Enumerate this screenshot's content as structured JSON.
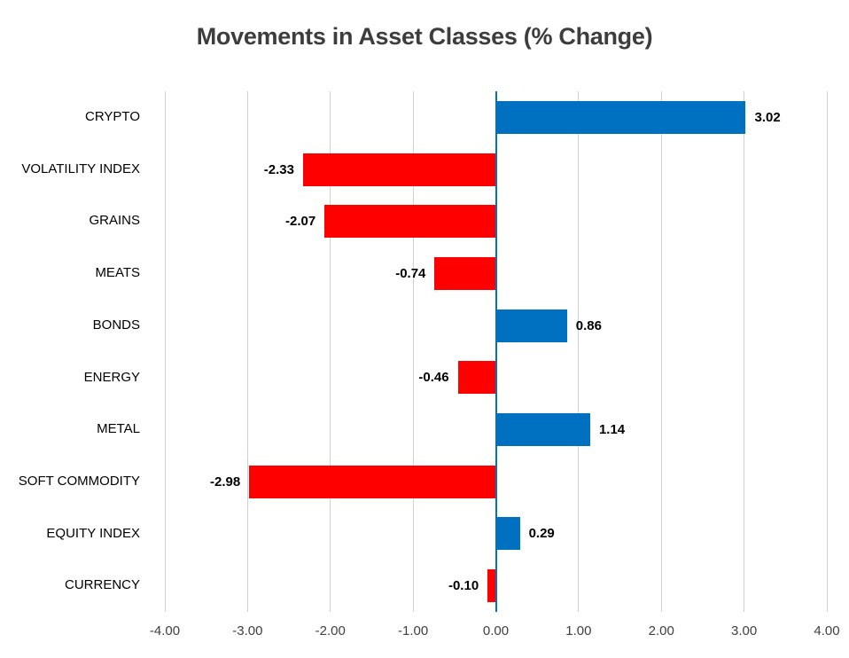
{
  "title": "Movements in Asset Classes (% Change)",
  "chart_data": {
    "type": "bar",
    "orientation": "horizontal",
    "title": "Movements in Asset Classes (% Change)",
    "categories": [
      "CRYPTO",
      "VOLATILITY INDEX",
      "GRAINS",
      "MEATS",
      "BONDS",
      "ENERGY",
      "METAL",
      "SOFT COMMODITY",
      "EQUITY INDEX",
      "CURRENCY"
    ],
    "values": [
      3.02,
      -2.33,
      -2.07,
      -0.74,
      0.86,
      -0.46,
      1.14,
      -2.98,
      0.29,
      -0.1
    ],
    "value_labels": [
      "3.02",
      "-2.33",
      "-2.07",
      "-0.74",
      "0.86",
      "-0.46",
      "1.14",
      "-2.98",
      "0.29",
      "-0.10"
    ],
    "xlabel": "",
    "ylabel": "",
    "xlim": [
      -4,
      4
    ],
    "x_ticks": [
      -4,
      -3,
      -2,
      -1,
      0,
      1,
      2,
      3,
      4
    ],
    "x_tick_labels": [
      "-4.00",
      "-3.00",
      "-2.00",
      "-1.00",
      "0.00",
      "1.00",
      "2.00",
      "3.00",
      "4.00"
    ],
    "grid": true,
    "legend": false,
    "colors": {
      "positive_bar": "#0070C0",
      "negative_bar": "#FF0000",
      "zero_axis_line": "#0070C0",
      "gridline": "#D2D2D2",
      "title_text": "#3D3D3D",
      "category_text": "#000000",
      "tick_text": "#404040",
      "value_text": "#000000",
      "background": "#FFFFFF"
    }
  }
}
